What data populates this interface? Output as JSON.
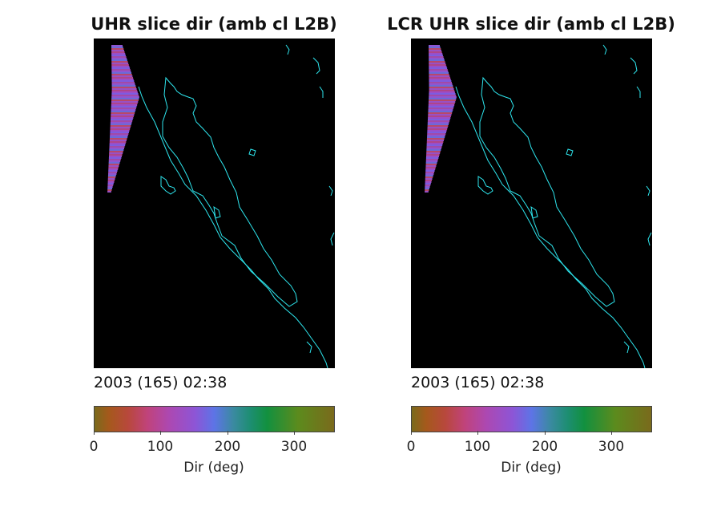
{
  "chart_data": [
    {
      "type": "heatmap",
      "title": "UHR slice dir (amb cl L2B)",
      "timestamp": "2003 (165) 02:38",
      "colorbar": {
        "label": "Dir (deg)",
        "range": [
          0,
          360
        ],
        "ticks": [
          0,
          100,
          200,
          300
        ],
        "colormap": [
          "#7a6a1c",
          "#a5591c",
          "#b8483c",
          "#c0437a",
          "#ad48b1",
          "#8d55d6",
          "#5d74e6",
          "#3a8aa0",
          "#1d8e72",
          "#12903f",
          "#5c8b1d",
          "#7a6a1c"
        ]
      },
      "background_color": "#000000",
      "coastline_color": "#2ee6ee",
      "swath": {
        "dominant_direction_deg": [
          120,
          160
        ]
      }
    },
    {
      "type": "heatmap",
      "title": "LCR UHR slice dir (amb cl L2B)",
      "timestamp": "2003 (165) 02:38",
      "colorbar": {
        "label": "Dir (deg)",
        "range": [
          0,
          360
        ],
        "ticks": [
          0,
          100,
          200,
          300
        ],
        "colormap": [
          "#7a6a1c",
          "#a5591c",
          "#b8483c",
          "#c0437a",
          "#ad48b1",
          "#8d55d6",
          "#5d74e6",
          "#3a8aa0",
          "#1d8e72",
          "#12903f",
          "#5c8b1d",
          "#7a6a1c"
        ]
      },
      "background_color": "#000000",
      "coastline_color": "#2ee6ee",
      "swath": {
        "dominant_direction_deg": [
          120,
          160
        ]
      }
    }
  ]
}
